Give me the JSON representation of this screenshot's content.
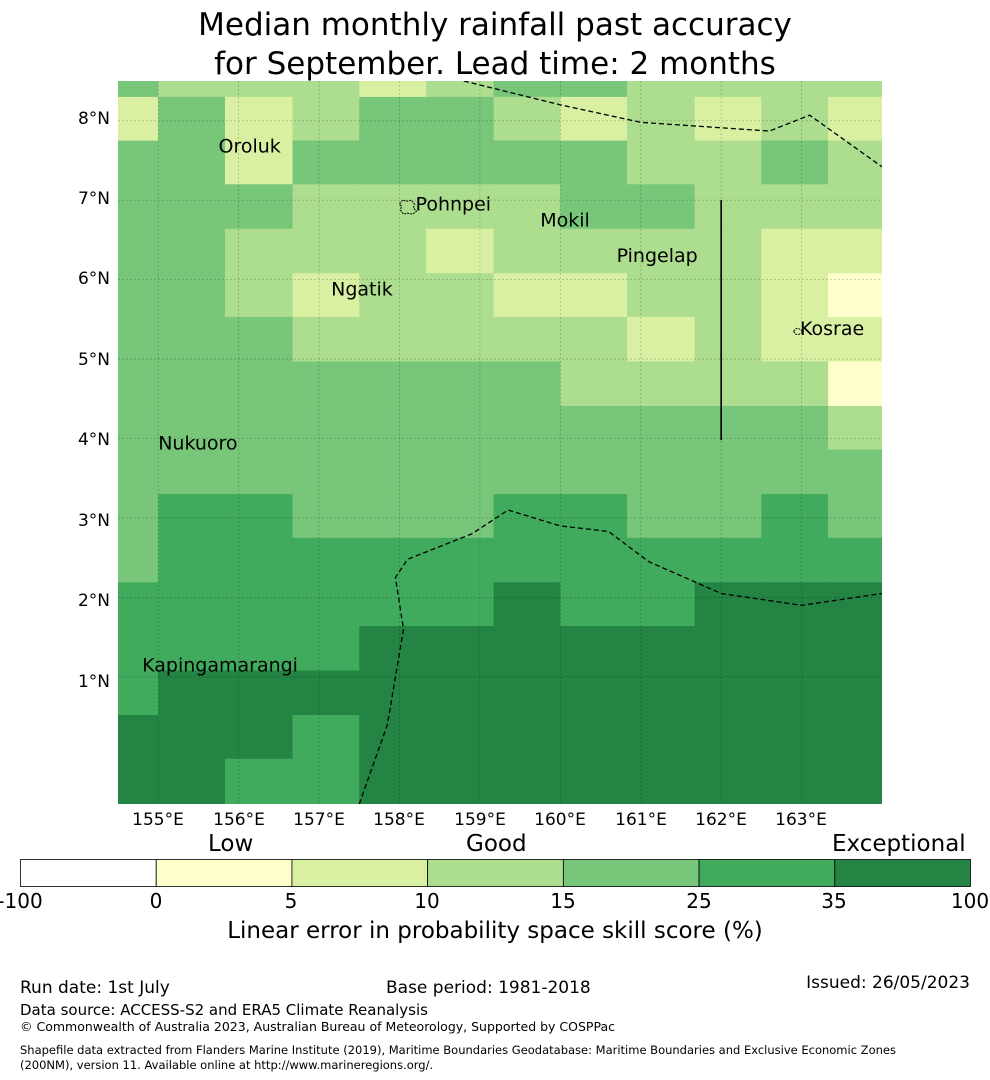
{
  "title": {
    "line1": "Median monthly rainfall past accuracy",
    "line2": "for September. Lead time: 2 months"
  },
  "map": {
    "lat_labels": [
      "8°N",
      "7°N",
      "6°N",
      "5°N",
      "4°N",
      "3°N",
      "2°N",
      "1°N"
    ],
    "lon_labels": [
      "155°E",
      "156°E",
      "157°E",
      "158°E",
      "159°E",
      "160°E",
      "161°E",
      "162°E",
      "163°E"
    ],
    "places": [
      {
        "name": "Oroluk",
        "lon": 155.75,
        "lat": 7.6
      },
      {
        "name": "Pohnpei",
        "lon": 158.2,
        "lat": 6.87
      },
      {
        "name": "Mokil",
        "lon": 159.75,
        "lat": 6.67
      },
      {
        "name": "Pingelap",
        "lon": 160.7,
        "lat": 6.22
      },
      {
        "name": "Ngatik",
        "lon": 157.15,
        "lat": 5.8
      },
      {
        "name": "Kosrae",
        "lon": 162.98,
        "lat": 5.3
      },
      {
        "name": "Nukuoro",
        "lon": 155.0,
        "lat": 3.86
      },
      {
        "name": "Kapingamarangi",
        "lon": 154.8,
        "lat": 1.07
      }
    ],
    "grid": {
      "lon_edges": [
        154.5,
        155.0,
        155.83,
        156.67,
        157.5,
        158.33,
        159.17,
        160.0,
        160.83,
        161.67,
        162.5,
        163.33,
        164.0
      ],
      "lat_edges": [
        8.5,
        8.3,
        7.75,
        7.2,
        6.64,
        6.08,
        5.53,
        4.97,
        4.41,
        3.86,
        3.3,
        2.75,
        2.19,
        1.64,
        1.08,
        0.52,
        -0.03,
        -0.6
      ],
      "cells": [
        [
          3,
          2,
          2,
          2,
          1,
          2,
          3,
          3,
          2,
          2,
          2,
          2
        ],
        [
          1,
          3,
          1,
          2,
          3,
          3,
          2,
          1,
          2,
          1,
          2,
          1
        ],
        [
          3,
          3,
          1,
          3,
          3,
          3,
          3,
          3,
          2,
          2,
          3,
          2
        ],
        [
          3,
          3,
          3,
          2,
          2,
          2,
          2,
          3,
          3,
          2,
          2,
          2
        ],
        [
          3,
          3,
          2,
          2,
          2,
          1,
          2,
          2,
          2,
          2,
          1,
          1
        ],
        [
          3,
          3,
          2,
          1,
          2,
          2,
          1,
          1,
          2,
          2,
          1,
          0
        ],
        [
          3,
          3,
          3,
          2,
          2,
          2,
          2,
          2,
          1,
          2,
          1,
          1
        ],
        [
          3,
          3,
          3,
          3,
          3,
          3,
          3,
          2,
          2,
          2,
          2,
          0
        ],
        [
          3,
          3,
          3,
          3,
          3,
          3,
          3,
          3,
          3,
          3,
          3,
          2
        ],
        [
          3,
          3,
          3,
          3,
          3,
          3,
          3,
          3,
          3,
          3,
          3,
          3
        ],
        [
          3,
          4,
          4,
          3,
          3,
          3,
          4,
          4,
          3,
          3,
          4,
          3
        ],
        [
          3,
          4,
          4,
          4,
          4,
          4,
          4,
          4,
          4,
          4,
          4,
          4
        ],
        [
          4,
          4,
          4,
          4,
          4,
          4,
          5,
          4,
          4,
          5,
          5,
          5
        ],
        [
          4,
          4,
          4,
          4,
          5,
          5,
          5,
          5,
          5,
          5,
          5,
          5
        ],
        [
          4,
          5,
          5,
          5,
          5,
          5,
          5,
          5,
          5,
          5,
          5,
          5
        ],
        [
          5,
          5,
          5,
          4,
          5,
          5,
          5,
          5,
          5,
          5,
          5,
          5
        ],
        [
          5,
          5,
          4,
          4,
          5,
          5,
          5,
          5,
          5,
          5,
          5,
          5
        ]
      ]
    },
    "boundaries": [
      [
        [
          158.8,
          8.5
        ],
        [
          160.0,
          8.2
        ],
        [
          161.0,
          7.98
        ],
        [
          162.6,
          7.87
        ],
        [
          163.1,
          8.07
        ],
        [
          164.0,
          7.42
        ]
      ],
      [
        [
          157.5,
          -0.6
        ],
        [
          157.85,
          0.4
        ],
        [
          158.05,
          1.6
        ],
        [
          157.95,
          2.25
        ],
        [
          158.1,
          2.48
        ],
        [
          158.9,
          2.8
        ],
        [
          159.35,
          3.1
        ],
        [
          160.0,
          2.9
        ],
        [
          160.6,
          2.83
        ],
        [
          161.1,
          2.45
        ],
        [
          162.0,
          2.05
        ],
        [
          163.0,
          1.9
        ],
        [
          164.0,
          2.05
        ]
      ]
    ],
    "lines": [
      [
        [
          162.0,
          7.0
        ],
        [
          162.0,
          3.98
        ]
      ]
    ]
  },
  "colorbar": {
    "category_labels": [
      "Low",
      "Good",
      "Exceptional"
    ],
    "ticks": [
      "-100",
      "0",
      "5",
      "10",
      "15",
      "25",
      "35",
      "100"
    ],
    "colors": [
      "#ffffff",
      "#ffffcc",
      "#d9f0a3",
      "#addd8e",
      "#78c679",
      "#41ab5d",
      "#238443"
    ],
    "title": "Linear error in probability space skill score (%)"
  },
  "footer": {
    "run_date": "Run date: 1st July",
    "base_period": "Base period: 1981-2018",
    "issued": "Issued: 26/05/2023",
    "data_source": "Data source: ACCESS-S2 and ERA5 Climate Reanalysis",
    "copyright": "© Commonwealth of Australia 2023, Australian Bureau of Meteorology, Supported by COSPPac",
    "shapefile_line1": "Shapefile data extracted from Flanders Marine Institute (2019), Maritime Boundaries Geodatabase: Maritime Boundaries and Exclusive Economic Zones",
    "shapefile_line2": "(200NM), version 11. Available online at http://www.marineregions.org/."
  }
}
